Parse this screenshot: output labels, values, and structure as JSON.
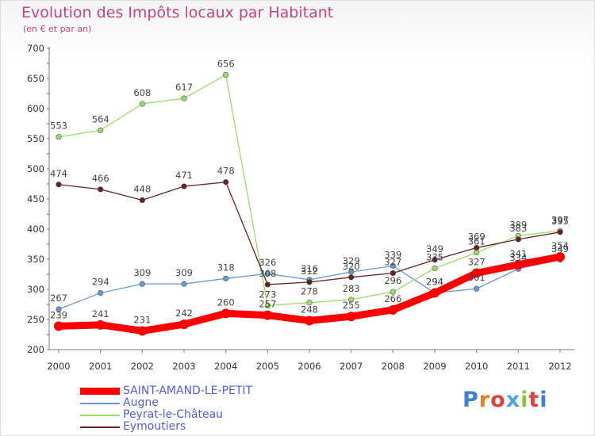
{
  "chart_data": {
    "type": "line",
    "title": "Evolution des Impôts locaux par Habitant",
    "subtitle": "(en € et par an)",
    "x": [
      "2000",
      "2001",
      "2002",
      "2003",
      "2004",
      "2005",
      "2006",
      "2007",
      "2008",
      "2009",
      "2010",
      "2011",
      "2012"
    ],
    "ylim": [
      200,
      700
    ],
    "yticks": [
      200,
      250,
      300,
      350,
      400,
      450,
      500,
      550,
      600,
      650,
      700
    ],
    "grid": false,
    "legend_position": "bottom-left",
    "series": [
      {
        "name": "SAINT-AMAND-LE-PETIT",
        "color": "#ff0000",
        "values": [
          239,
          241,
          231,
          242,
          260,
          257,
          248,
          255,
          266,
          294,
          327,
          341,
          354
        ]
      },
      {
        "name": "Augne",
        "color": "#6699cc",
        "values": [
          267,
          294,
          309,
          309,
          318,
          326,
          316,
          329,
          339,
          294,
          301,
          334,
          349
        ]
      },
      {
        "name": "Peyrat-le-Château",
        "color": "#99dd66",
        "values": [
          553,
          564,
          608,
          617,
          656,
          273,
          278,
          283,
          296,
          335,
          361,
          389,
          397
        ]
      },
      {
        "name": "Eymoutiers",
        "color": "#662222",
        "values": [
          474,
          466,
          448,
          471,
          478,
          308,
          312,
          320,
          327,
          349,
          369,
          383,
          395
        ]
      }
    ]
  },
  "logo": {
    "text": "Proxiti"
  }
}
